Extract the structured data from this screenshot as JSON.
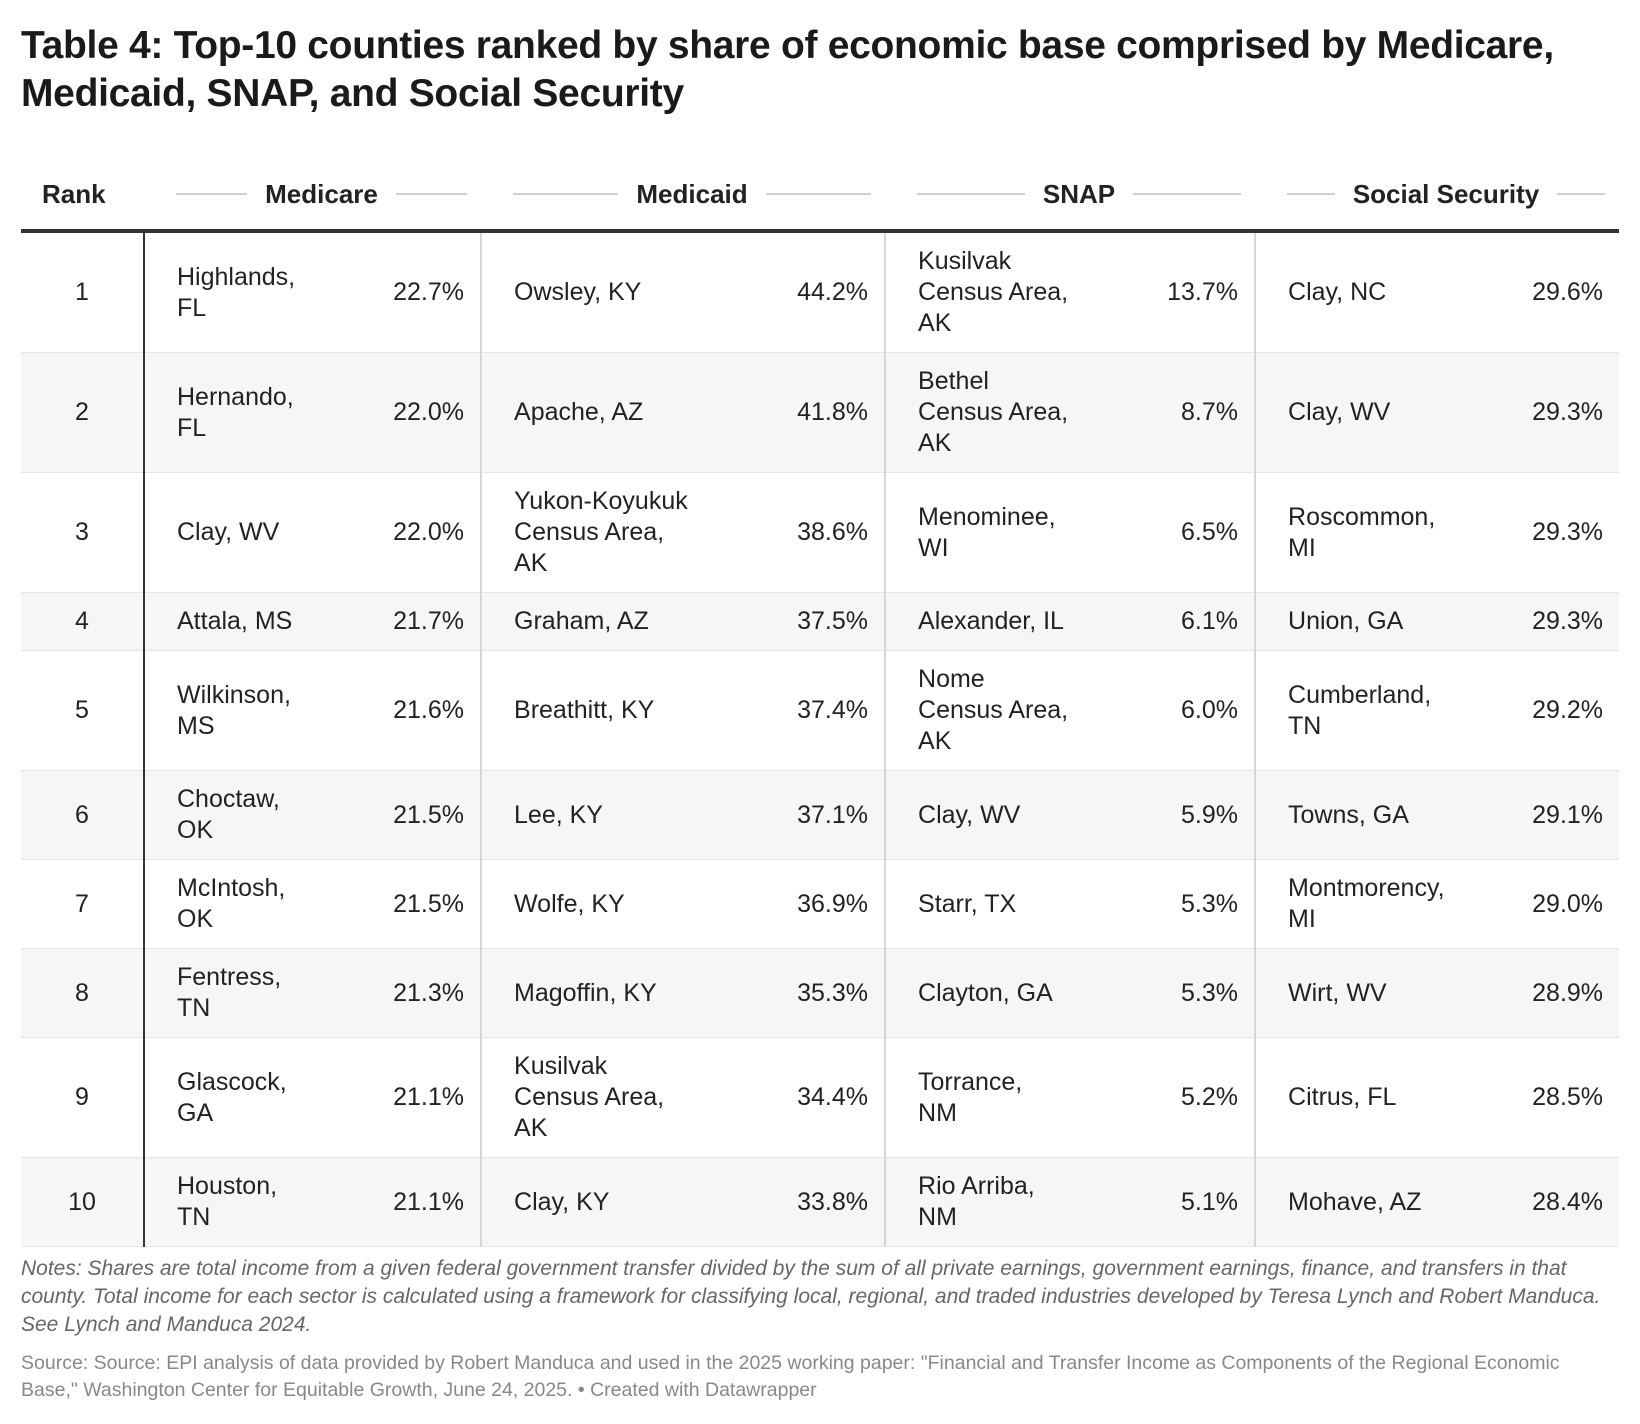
{
  "title": "Table 4: Top-10 counties ranked by share of economic base comprised by Medicare, Medicaid, SNAP, and Social Security",
  "columns": {
    "rank": "Rank",
    "medicare": "Medicare",
    "medicaid": "Medicaid",
    "snap": "SNAP",
    "social_security": "Social Security"
  },
  "rows": [
    {
      "rank": "1",
      "medicare": {
        "county": "Highlands,\nFL",
        "share": "22.7%"
      },
      "medicaid": {
        "county": "Owsley, KY",
        "share": "44.2%"
      },
      "snap": {
        "county": "Kusilvak\nCensus Area,\nAK",
        "share": "13.7%"
      },
      "social_security": {
        "county": "Clay, NC",
        "share": "29.6%"
      }
    },
    {
      "rank": "2",
      "medicare": {
        "county": "Hernando,\nFL",
        "share": "22.0%"
      },
      "medicaid": {
        "county": "Apache, AZ",
        "share": "41.8%"
      },
      "snap": {
        "county": "Bethel\nCensus Area,\nAK",
        "share": "8.7%"
      },
      "social_security": {
        "county": "Clay, WV",
        "share": "29.3%"
      }
    },
    {
      "rank": "3",
      "medicare": {
        "county": "Clay, WV",
        "share": "22.0%"
      },
      "medicaid": {
        "county": "Yukon-Koyukuk\nCensus Area,\nAK",
        "share": "38.6%"
      },
      "snap": {
        "county": "Menominee,\nWI",
        "share": "6.5%"
      },
      "social_security": {
        "county": "Roscommon,\nMI",
        "share": "29.3%"
      }
    },
    {
      "rank": "4",
      "medicare": {
        "county": "Attala, MS",
        "share": "21.7%"
      },
      "medicaid": {
        "county": "Graham, AZ",
        "share": "37.5%"
      },
      "snap": {
        "county": "Alexander, IL",
        "share": "6.1%"
      },
      "social_security": {
        "county": "Union, GA",
        "share": "29.3%"
      }
    },
    {
      "rank": "5",
      "medicare": {
        "county": "Wilkinson,\nMS",
        "share": "21.6%"
      },
      "medicaid": {
        "county": "Breathitt, KY",
        "share": "37.4%"
      },
      "snap": {
        "county": "Nome\nCensus Area,\nAK",
        "share": "6.0%"
      },
      "social_security": {
        "county": "Cumberland,\nTN",
        "share": "29.2%"
      }
    },
    {
      "rank": "6",
      "medicare": {
        "county": "Choctaw,\nOK",
        "share": "21.5%"
      },
      "medicaid": {
        "county": "Lee, KY",
        "share": "37.1%"
      },
      "snap": {
        "county": "Clay, WV",
        "share": "5.9%"
      },
      "social_security": {
        "county": "Towns, GA",
        "share": "29.1%"
      }
    },
    {
      "rank": "7",
      "medicare": {
        "county": "McIntosh,\nOK",
        "share": "21.5%"
      },
      "medicaid": {
        "county": "Wolfe, KY",
        "share": "36.9%"
      },
      "snap": {
        "county": "Starr, TX",
        "share": "5.3%"
      },
      "social_security": {
        "county": "Montmorency,\nMI",
        "share": "29.0%"
      }
    },
    {
      "rank": "8",
      "medicare": {
        "county": "Fentress,\nTN",
        "share": "21.3%"
      },
      "medicaid": {
        "county": "Magoffin, KY",
        "share": "35.3%"
      },
      "snap": {
        "county": "Clayton, GA",
        "share": "5.3%"
      },
      "social_security": {
        "county": "Wirt, WV",
        "share": "28.9%"
      }
    },
    {
      "rank": "9",
      "medicare": {
        "county": "Glascock,\nGA",
        "share": "21.1%"
      },
      "medicaid": {
        "county": "Kusilvak\nCensus Area,\nAK",
        "share": "34.4%"
      },
      "snap": {
        "county": "Torrance,\nNM",
        "share": "5.2%"
      },
      "social_security": {
        "county": "Citrus, FL",
        "share": "28.5%"
      }
    },
    {
      "rank": "10",
      "medicare": {
        "county": "Houston,\nTN",
        "share": "21.1%"
      },
      "medicaid": {
        "county": "Clay, KY",
        "share": "33.8%"
      },
      "snap": {
        "county": "Rio Arriba,\nNM",
        "share": "5.1%"
      },
      "social_security": {
        "county": "Mohave, AZ",
        "share": "28.4%"
      }
    }
  ],
  "notes": "Notes: Shares are total income from a given federal government transfer divided by the sum of all private earnings, government earnings, finance, and transfers in that county. Total income for each sector is calculated using a framework for classifying local, regional, and traded industries developed by Teresa Lynch and Robert Manduca. See Lynch and Manduca 2024.",
  "source": "Source: Source: EPI analysis of data provided by Robert Manduca and used in the 2025 working paper: \"Financial and Transfer Income as Components of the Regional Economic Base,\" Washington Center for Equitable Growth, June 24, 2025. • Created with Datawrapper"
}
